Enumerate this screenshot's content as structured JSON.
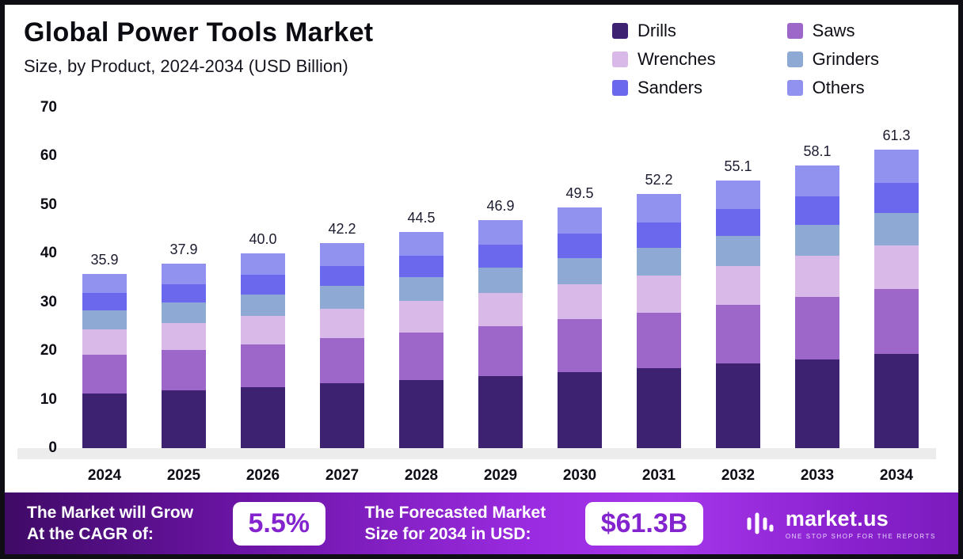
{
  "header": {
    "title": "Global Power Tools Market",
    "subtitle": "Size, by Product, 2024-2034 (USD Billion)"
  },
  "legend": {
    "items": [
      {
        "label": "Drills",
        "color": "#3e2272"
      },
      {
        "label": "Saws",
        "color": "#9c67c9"
      },
      {
        "label": "Wrenches",
        "color": "#d9b9e8"
      },
      {
        "label": "Grinders",
        "color": "#8ea9d4"
      },
      {
        "label": "Sanders",
        "color": "#6b68ee"
      },
      {
        "label": "Others",
        "color": "#9192f0"
      }
    ]
  },
  "chart_data": {
    "type": "bar",
    "stacked": true,
    "title": "Global Power Tools Market",
    "subtitle": "Size, by Product, 2024-2034 (USD Billion)",
    "ylabel": "USD Billion",
    "xlabel": "",
    "ylim": [
      0,
      70
    ],
    "yticks": [
      0,
      10,
      20,
      30,
      40,
      50,
      60,
      70
    ],
    "grid": false,
    "legend_position": "top-right",
    "categories": [
      "2024",
      "2025",
      "2026",
      "2027",
      "2028",
      "2029",
      "2030",
      "2031",
      "2032",
      "2033",
      "2034"
    ],
    "totals": [
      "35.9",
      "37.9",
      "40.0",
      "42.2",
      "44.5",
      "46.9",
      "49.5",
      "52.2",
      "55.1",
      "58.1",
      "61.3"
    ],
    "series": [
      {
        "name": "Drills",
        "values": [
          11.3,
          11.9,
          12.6,
          13.3,
          14.0,
          14.8,
          15.6,
          16.4,
          17.4,
          18.3,
          19.3
        ]
      },
      {
        "name": "Saws",
        "values": [
          7.9,
          8.3,
          8.8,
          9.3,
          9.8,
          10.3,
          10.9,
          11.5,
          12.1,
          12.8,
          13.5
        ]
      },
      {
        "name": "Wrenches",
        "values": [
          5.2,
          5.5,
          5.8,
          6.1,
          6.5,
          6.8,
          7.2,
          7.6,
          8.0,
          8.4,
          8.9
        ]
      },
      {
        "name": "Grinders",
        "values": [
          3.9,
          4.2,
          4.4,
          4.6,
          4.9,
          5.2,
          5.4,
          5.7,
          6.1,
          6.4,
          6.7
        ]
      },
      {
        "name": "Sanders",
        "values": [
          3.6,
          3.8,
          4.0,
          4.2,
          4.4,
          4.7,
          5.0,
          5.2,
          5.5,
          5.8,
          6.1
        ]
      },
      {
        "name": "Others",
        "values": [
          4.0,
          4.2,
          4.4,
          4.7,
          4.9,
          5.1,
          5.4,
          5.8,
          6.0,
          6.4,
          6.8
        ]
      }
    ]
  },
  "footer": {
    "cagr_line1": "The Market will Grow",
    "cagr_line2": "At the CAGR of:",
    "cagr_value": "5.5%",
    "forecast_line1": "The Forecasted Market",
    "forecast_line2": "Size for 2034 in USD:",
    "forecast_value": "$61.3B",
    "brand_name": "market.us",
    "brand_tagline": "ONE STOP SHOP FOR THE REPORTS"
  }
}
